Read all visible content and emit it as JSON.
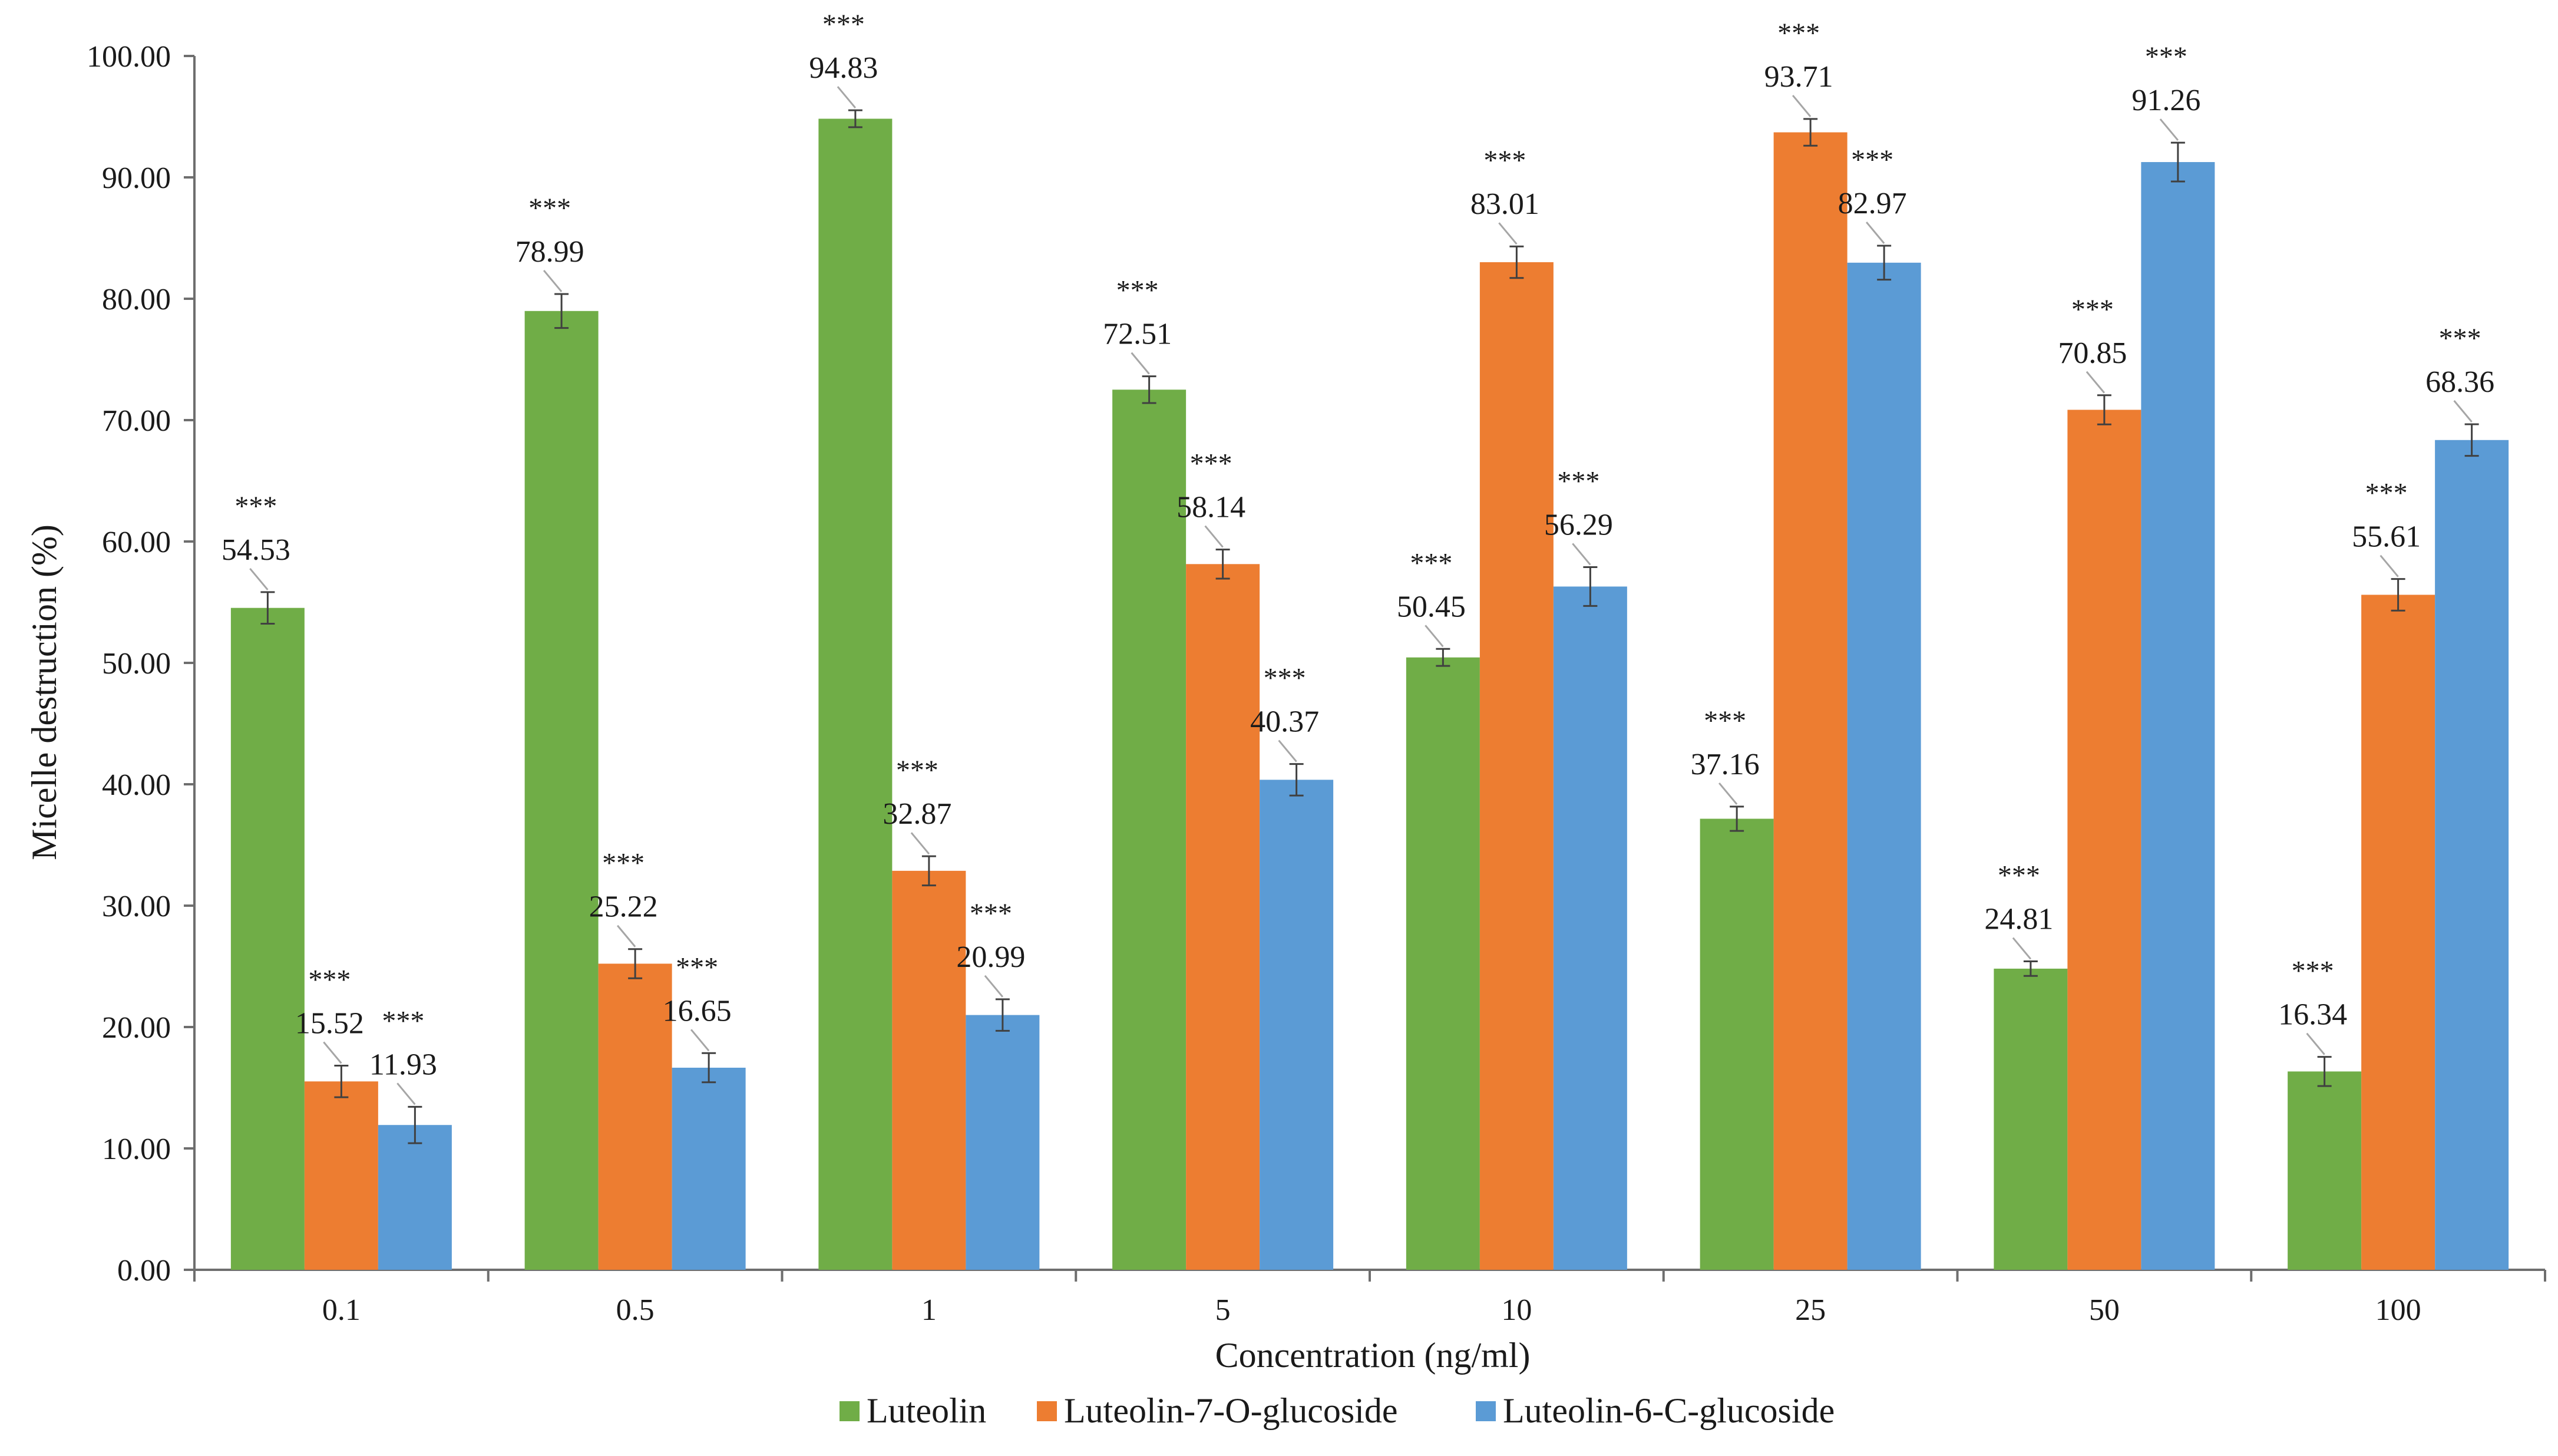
{
  "chart_data": {
    "type": "bar",
    "title": "",
    "xlabel": "Concentration (ng/ml)",
    "ylabel": "Micelle destruction (%)",
    "ylim": [
      0,
      100
    ],
    "y_ticks": [
      "0.00",
      "10.00",
      "20.00",
      "30.00",
      "40.00",
      "50.00",
      "60.00",
      "70.00",
      "80.00",
      "90.00",
      "100.00"
    ],
    "categories": [
      "0.1",
      "0.5",
      "1",
      "5",
      "10",
      "25",
      "50",
      "100"
    ],
    "legend_position": "bottom",
    "significance_marker": "***",
    "series": [
      {
        "name": "Luteolin",
        "color": "#70AD47",
        "values": [
          54.53,
          78.99,
          94.83,
          72.51,
          50.45,
          37.16,
          24.81,
          16.34
        ],
        "labels": [
          "54.53",
          "78.99",
          "94.83",
          "72.51",
          "50.45",
          "37.16",
          "24.81",
          "16.34"
        ],
        "errors": [
          1.3,
          1.4,
          0.7,
          1.1,
          0.7,
          1.0,
          0.6,
          1.2
        ]
      },
      {
        "name": "Luteolin-7-O-glucoside",
        "color": "#ED7D31",
        "values": [
          15.52,
          25.22,
          32.87,
          58.14,
          83.01,
          93.71,
          70.85,
          55.61
        ],
        "labels": [
          "15.52",
          "25.22",
          "32.87",
          "58.14",
          "83.01",
          "93.71",
          "70.85",
          "55.61"
        ],
        "errors": [
          1.3,
          1.2,
          1.2,
          1.2,
          1.3,
          1.1,
          1.2,
          1.3
        ]
      },
      {
        "name": "Luteolin-6-C-glucoside",
        "color": "#5B9BD5",
        "values": [
          11.93,
          16.65,
          20.99,
          40.37,
          56.29,
          82.97,
          91.26,
          68.36
        ],
        "labels": [
          "11.93",
          "16.65",
          "20.99",
          "40.37",
          "56.29",
          "82.97",
          "91.26",
          "68.36"
        ],
        "errors": [
          1.5,
          1.2,
          1.3,
          1.3,
          1.6,
          1.4,
          1.6,
          1.3
        ]
      }
    ]
  }
}
